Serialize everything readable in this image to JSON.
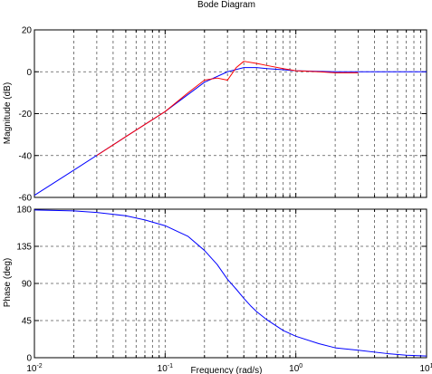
{
  "chart_data": {
    "title": "Bode Diagram",
    "xlabel": "Frequency  (rad/s)",
    "xscale": "log",
    "xlim": [
      0.01,
      10
    ],
    "grid": true,
    "x_tick_labels": [
      {
        "base": "10",
        "exp": "-2"
      },
      {
        "base": "10",
        "exp": "-1"
      },
      {
        "base": "10",
        "exp": "0"
      },
      {
        "base": "10",
        "exp": "1"
      }
    ],
    "panels": [
      {
        "type": "line",
        "ylabel": "Magnitude (dB)",
        "ylim": [
          -60,
          20
        ],
        "yticks": [
          -60,
          -40,
          -20,
          0,
          20
        ],
        "series": [
          {
            "color": "#0000ff",
            "x": [
              0.01,
              0.02,
              0.05,
              0.1,
              0.2,
              0.3,
              0.4,
              0.5,
              0.6,
              0.8,
              1.0,
              2.0,
              3.0,
              5.0,
              10.0
            ],
            "y": [
              -59,
              -47,
              -31,
              -19,
              -5,
              0,
              2,
              2,
              1.5,
              1,
              0.5,
              0,
              0,
              0,
              0
            ]
          },
          {
            "color": "#ff0000",
            "x": [
              0.03,
              0.05,
              0.1,
              0.15,
              0.2,
              0.25,
              0.3,
              0.35,
              0.4,
              0.5,
              0.6,
              0.8,
              1.0,
              1.5,
              2.0,
              3.0
            ],
            "y": [
              -40,
              -31,
              -19,
              -10,
              -4,
              -3,
              -4,
              2,
              5,
              4,
              3,
              1.5,
              0.5,
              0,
              -0.5,
              -0.5
            ]
          }
        ]
      },
      {
        "type": "line",
        "ylabel": "Phase (deg)",
        "ylim": [
          0,
          180
        ],
        "yticks": [
          0,
          45,
          90,
          135,
          180
        ],
        "series": [
          {
            "color": "#0000ff",
            "x": [
              0.01,
              0.02,
              0.03,
              0.05,
              0.07,
              0.1,
              0.15,
              0.2,
              0.25,
              0.3,
              0.35,
              0.4,
              0.45,
              0.5,
              0.6,
              0.7,
              0.8,
              1.0,
              1.5,
              2.0,
              3.0,
              5.0,
              7.0,
              10.0
            ],
            "y": [
              179,
              178,
              176,
              172,
              167,
              160,
              147,
              130,
              113,
              95,
              83,
              72,
              63,
              56,
              46,
              39,
              33,
              26,
              17,
              12,
              9,
              5,
              3,
              2
            ]
          }
        ]
      }
    ]
  }
}
